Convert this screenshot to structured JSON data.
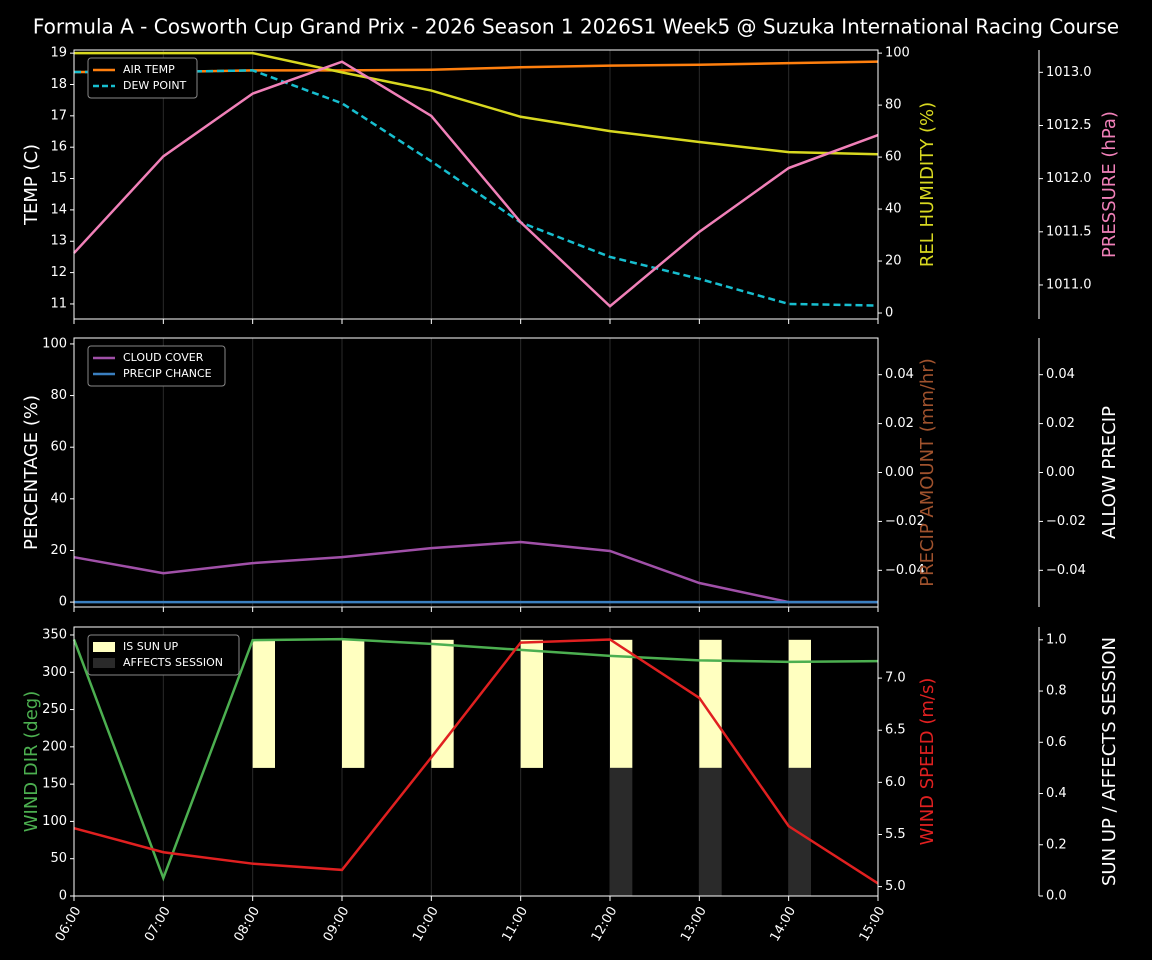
{
  "chart_data": [
    {
      "type": "line",
      "title": "Formula A - Cosworth Cup Grand Prix - 2026 Season 1 2026S1 Week5 @ Suzuka International Racing Course",
      "ylabel": "TEMP (C)",
      "ylabel_color": "#ffffff",
      "ylim": [
        10.52,
        19.1
      ],
      "yticks": [
        11,
        12,
        13,
        14,
        15,
        16,
        17,
        18,
        19
      ],
      "y2label": "REL HUMIDITY (%)",
      "y2label_color": "#d8d820",
      "y2lim": [
        -2.3,
        101.2
      ],
      "y2ticks": [
        0,
        20,
        40,
        60,
        80,
        100
      ],
      "y3label": "PRESSURE (hPa)",
      "y3label_color": "#f080b8",
      "y3lim": [
        1010.68,
        1013.21
      ],
      "y3ticks": [
        {
          "value": 1011.0,
          "label": "1011.0"
        },
        {
          "value": 1011.5,
          "label": "1011.5"
        },
        {
          "value": 1012.0,
          "label": "1012.0"
        },
        {
          "value": 1012.5,
          "label": "1012.5"
        },
        {
          "value": 1013.0,
          "label": "1013.0"
        }
      ],
      "legend": "upper left",
      "grid": true,
      "series": [
        {
          "name": "AIR TEMP",
          "color": "#ff7f0e",
          "axis": "y",
          "values": [
            18.4,
            18.4,
            18.45,
            18.45,
            18.47,
            18.55,
            18.6,
            18.63,
            18.68,
            18.73
          ]
        },
        {
          "name": "DEW POINT",
          "color": "#17becf",
          "axis": "y",
          "dashed": true,
          "values": [
            18.4,
            18.4,
            18.45,
            17.4,
            15.55,
            13.6,
            12.5,
            11.8,
            11.0,
            10.95
          ]
        },
        {
          "color": "#d8d820",
          "axis": "y2",
          "values": [
            100,
            100,
            100,
            92.6,
            85.6,
            75.5,
            70,
            65.8,
            61.9,
            61.1
          ]
        },
        {
          "color": "#f080b8",
          "axis": "y3",
          "values": [
            1011.3,
            1012.21,
            1012.8,
            1013.1,
            1012.59,
            1011.59,
            1010.8,
            1011.5,
            1012.1,
            1012.41
          ]
        }
      ]
    },
    {
      "type": "line",
      "ylabel": "PERCENTAGE (%)",
      "ylabel_color": "#ffffff",
      "ylim": [
        -1.9,
        102.3
      ],
      "yticks": [
        0,
        20,
        40,
        60,
        80,
        100
      ],
      "y2label": "PRECIP AMOUNT (mm/hr)",
      "y2label_color": "#a0522d",
      "y2lim": [
        -0.055,
        0.055
      ],
      "y2ticks": [
        {
          "value": -0.04,
          "label": "−0.04"
        },
        {
          "value": -0.02,
          "label": "−0.02"
        },
        {
          "value": 0,
          "label": "0.00"
        },
        {
          "value": 0.02,
          "label": "0.02"
        },
        {
          "value": 0.04,
          "label": "0.04"
        }
      ],
      "y3label": "ALLOW PRECIP",
      "y3label_color": "#ffffff",
      "y3lim": [
        -0.055,
        0.055
      ],
      "y3ticks": [
        {
          "value": -0.04,
          "label": "−0.04"
        },
        {
          "value": -0.02,
          "label": "−0.02"
        },
        {
          "value": 0,
          "label": "0.00"
        },
        {
          "value": 0.02,
          "label": "0.02"
        },
        {
          "value": 0.04,
          "label": "0.04"
        }
      ],
      "legend": "upper left",
      "grid": true,
      "series": [
        {
          "name": "CLOUD COVER",
          "color": "#a050a8",
          "axis": "y",
          "values": [
            17.4,
            11.2,
            15.1,
            17.4,
            20.9,
            23.3,
            19.8,
            7.4,
            0,
            0
          ]
        },
        {
          "name": "PRECIP CHANCE",
          "color": "#3a7fc0",
          "axis": "y",
          "values": [
            0,
            0,
            0,
            0,
            0,
            0,
            0,
            0,
            0,
            0
          ]
        }
      ]
    },
    {
      "type": "line",
      "categories": [
        "06:00",
        "07:00",
        "08:00",
        "09:00",
        "10:00",
        "11:00",
        "12:00",
        "13:00",
        "14:00",
        "15:00"
      ],
      "ylabel": "WIND DIR (deg)",
      "ylabel_color": "#4caf50",
      "ylim": [
        0,
        360.7
      ],
      "yticks": [
        0,
        50,
        100,
        150,
        200,
        250,
        300,
        350
      ],
      "y2label": "WIND SPEED (m/s)",
      "y2label_color": "#e02020",
      "y2lim": [
        4.91,
        7.49
      ],
      "y2ticks": [
        {
          "value": 5.0,
          "label": "5.0"
        },
        {
          "value": 5.5,
          "label": "5.5"
        },
        {
          "value": 6.0,
          "label": "6.0"
        },
        {
          "value": 6.5,
          "label": "6.5"
        },
        {
          "value": 7.0,
          "label": "7.0"
        }
      ],
      "y3label": "SUN UP / AFFECTS SESSION",
      "y3label_color": "#ffffff",
      "y3lim": [
        0,
        1.05
      ],
      "y3ticks": [
        {
          "value": 0,
          "label": "0.0"
        },
        {
          "value": 0.2,
          "label": "0.2"
        },
        {
          "value": 0.4,
          "label": "0.4"
        },
        {
          "value": 0.6,
          "label": "0.6"
        },
        {
          "value": 0.8,
          "label": "0.8"
        },
        {
          "value": 1.0,
          "label": "1.0"
        }
      ],
      "legend": "upper left",
      "grid": true,
      "series": [
        {
          "name": "IS SUN UP",
          "color": "#ffffc0",
          "axis": "y3",
          "kind": "bar",
          "bottom": 0.5,
          "values": [
            0,
            0,
            0.5,
            0.5,
            0.5,
            0.5,
            0.5,
            0.5,
            0.5,
            0
          ]
        },
        {
          "name": "AFFECTS SESSION",
          "color": "#2a2a2a",
          "axis": "y3",
          "kind": "bar",
          "values": [
            0,
            0,
            0,
            0,
            0,
            0,
            0.5,
            0.5,
            0.5,
            0
          ]
        },
        {
          "color": "#4caf50",
          "axis": "y",
          "values": [
            344,
            24,
            343,
            344.5,
            338,
            330,
            322,
            316,
            314,
            315
          ]
        },
        {
          "color": "#e02020",
          "axis": "y2",
          "values": [
            5.56,
            5.33,
            5.22,
            5.16,
            6.24,
            7.34,
            7.37,
            6.81,
            5.58,
            5.03
          ]
        }
      ]
    }
  ]
}
